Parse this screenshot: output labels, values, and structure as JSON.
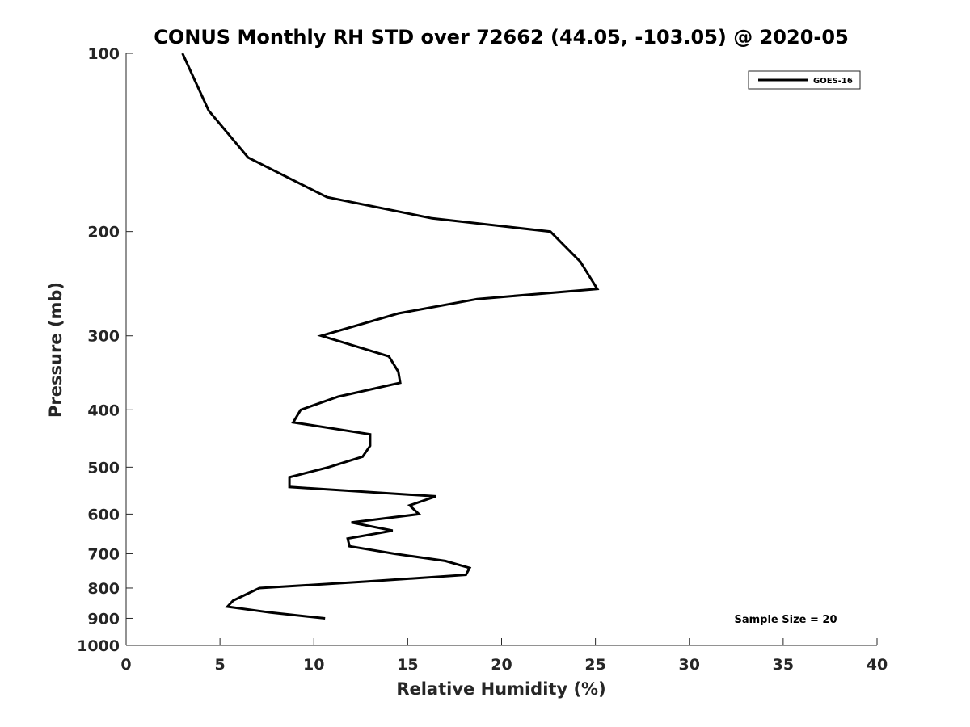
{
  "chart_data": {
    "type": "line",
    "title": "CONUS Monthly RH STD over 72662 (44.05, -103.05) @ 2020-05",
    "xlabel": "Relative Humidity (%)",
    "ylabel": "Pressure (mb)",
    "xlim": [
      0,
      40
    ],
    "ylim": [
      100,
      1000
    ],
    "y_scale": "log",
    "y_reversed": true,
    "x_ticks": [
      0,
      5,
      10,
      15,
      20,
      25,
      30,
      35,
      40
    ],
    "y_ticks": [
      100,
      200,
      300,
      400,
      500,
      600,
      700,
      800,
      900,
      1000
    ],
    "grid": false,
    "legend_position": "top-right",
    "annotation": "Sample Size = 20",
    "series": [
      {
        "name": "GOES-16",
        "color": "#000000",
        "points": [
          [
            3.0,
            100
          ],
          [
            4.4,
            125
          ],
          [
            6.5,
            150
          ],
          [
            10.7,
            175
          ],
          [
            16.3,
            190
          ],
          [
            22.6,
            200
          ],
          [
            24.2,
            225
          ],
          [
            25.1,
            250
          ],
          [
            18.7,
            260
          ],
          [
            14.5,
            275
          ],
          [
            10.4,
            300
          ],
          [
            14.0,
            325
          ],
          [
            14.5,
            345
          ],
          [
            14.6,
            360
          ],
          [
            11.3,
            380
          ],
          [
            9.3,
            400
          ],
          [
            8.9,
            420
          ],
          [
            13.0,
            440
          ],
          [
            13.0,
            460
          ],
          [
            12.6,
            480
          ],
          [
            10.8,
            500
          ],
          [
            8.7,
            520
          ],
          [
            8.7,
            540
          ],
          [
            16.5,
            560
          ],
          [
            15.1,
            580
          ],
          [
            15.6,
            600
          ],
          [
            12.0,
            620
          ],
          [
            14.2,
            640
          ],
          [
            11.8,
            660
          ],
          [
            11.9,
            680
          ],
          [
            14.3,
            700
          ],
          [
            17.0,
            720
          ],
          [
            18.3,
            740
          ],
          [
            18.1,
            760
          ],
          [
            12.8,
            780
          ],
          [
            7.1,
            800
          ],
          [
            5.7,
            840
          ],
          [
            5.4,
            860
          ],
          [
            7.7,
            880
          ],
          [
            10.6,
            900
          ]
        ]
      }
    ]
  }
}
